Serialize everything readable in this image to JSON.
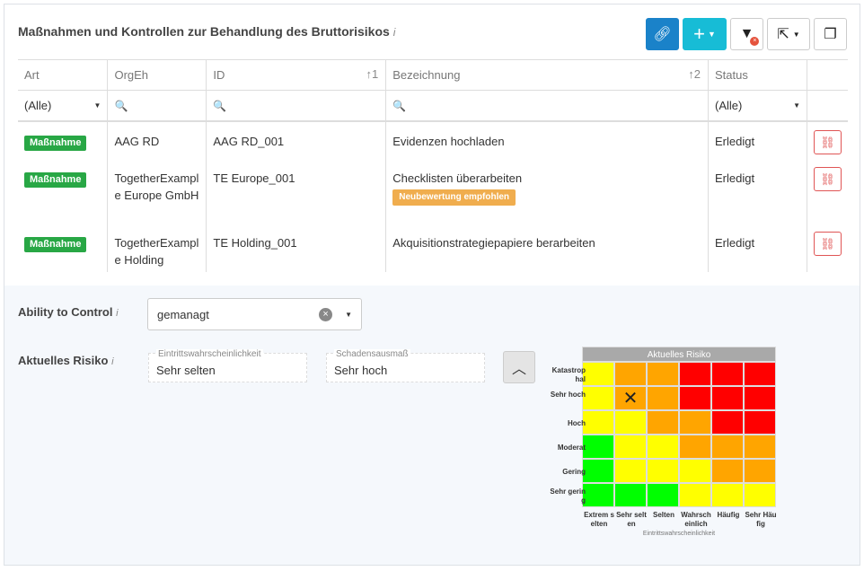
{
  "title": "Maßnahmen und Kontrollen zur Behandlung des Bruttorisikos",
  "info": "i",
  "toolbar": {
    "link": "link-icon",
    "add": "+",
    "filter_clear": "filter-clear-icon",
    "export": "export-icon",
    "columns": "columns-icon"
  },
  "columns": [
    {
      "label": "Art"
    },
    {
      "label": "OrgEh"
    },
    {
      "label": "ID",
      "sort": "↑1"
    },
    {
      "label": "Bezeichnung",
      "sort": "↑2"
    },
    {
      "label": "Status"
    }
  ],
  "filters": {
    "art": "(Alle)",
    "status": "(Alle)",
    "search_icon": "🔍"
  },
  "rows": [
    {
      "art": "Maßnahme",
      "orgeh": "AAG RD",
      "id": "AAG RD_001",
      "bezeichnung": "Evidenzen hochladen",
      "status": "Erledigt"
    },
    {
      "art": "Maßnahme",
      "orgeh": "TogetherExample Europe GmbH",
      "id": "TE Europe_001",
      "bezeichnung": "Checklisten überarbeiten",
      "badge": "Neubewertung empfohlen",
      "status": "Erledigt"
    },
    {
      "art": "Maßnahme",
      "orgeh": "TogetherExample Holding",
      "id": "TE Holding_001",
      "bezeichnung": "Akquisitionstrategiepapiere berarbeiten",
      "status": "Erledigt"
    }
  ],
  "ability": {
    "label": "Ability to Control",
    "value": "gemanagt"
  },
  "risk": {
    "label": "Aktuelles Risiko",
    "prob_legend": "Eintrittswahrscheinlichkeit",
    "prob_value": "Sehr selten",
    "impact_legend": "Schadensausmaß",
    "impact_value": "Sehr hoch"
  },
  "matrix": {
    "title": "Aktuelles Risiko",
    "xlabel": "Eintrittswahrscheinlichkeit",
    "rows": [
      "Katastrophal",
      "Sehr hoch",
      "Hoch",
      "Moderat",
      "Gering",
      "Sehr gering"
    ],
    "cols": [
      "Extrem selten",
      "Sehr selten",
      "Selten",
      "Wahrscheinlich",
      "Häufig",
      "Sehr Häufig"
    ],
    "colors": {
      "G": "#00ff00",
      "Y": "#ffff00",
      "O": "#ffa500",
      "R": "#ff0000"
    },
    "cells": [
      "YOORRR",
      "YOORRR",
      "YYOORR",
      "GYYOOO",
      "GYYYOO",
      "GGGYYY"
    ],
    "marker": {
      "row": "Sehr hoch",
      "col": "Sehr selten",
      "symbol": "✕"
    }
  }
}
